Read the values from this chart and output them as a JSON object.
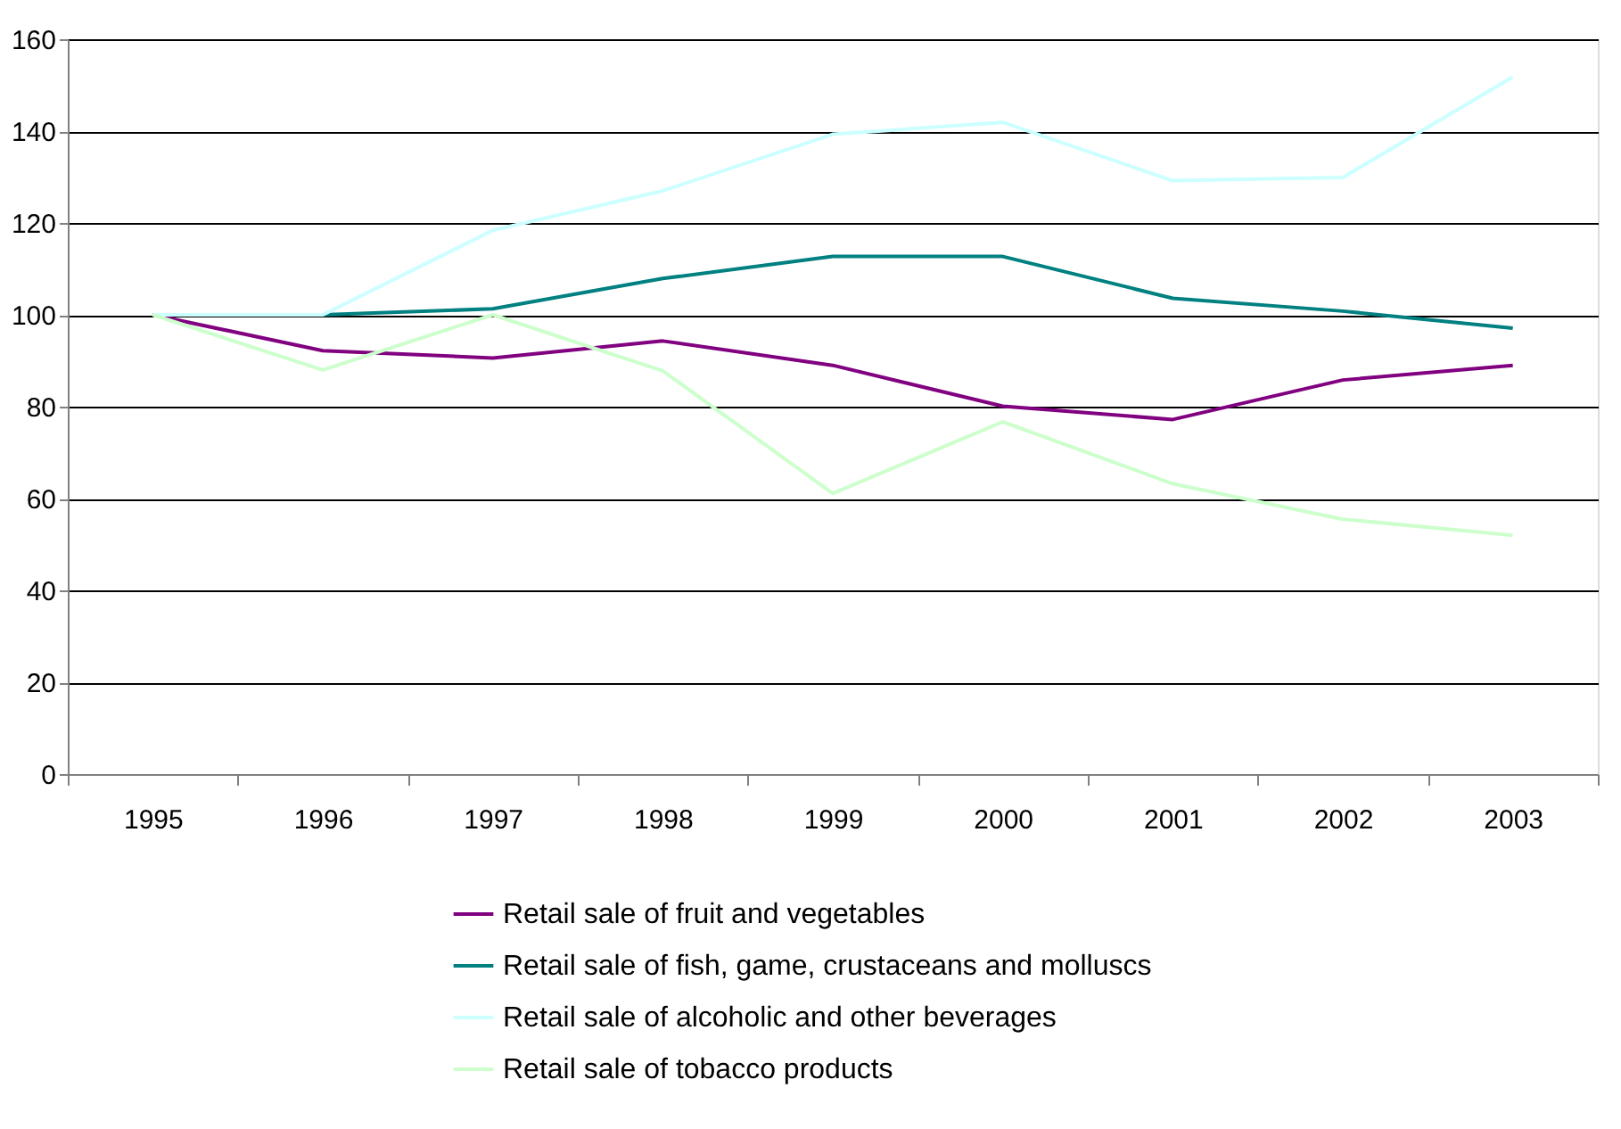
{
  "chart_data": {
    "type": "line",
    "categories": [
      "1995",
      "1996",
      "1997",
      "1998",
      "1999",
      "2000",
      "2001",
      "2002",
      "2003"
    ],
    "series": [
      {
        "name": "Retail sale of fruit and vegetables",
        "color": "#800080",
        "values": [
          100,
          92.2,
          90.6,
          94.3,
          89,
          80.1,
          77.2,
          85.8,
          89
        ]
      },
      {
        "name": "Retail sale of fish, game, crustaceans and molluscs",
        "color": "#008080",
        "values": [
          100,
          100,
          101.3,
          107.9,
          112.7,
          112.7,
          103.6,
          100.8,
          97.1
        ]
      },
      {
        "name": "Retail sale of alcoholic and other beverages",
        "color": "#ccffff",
        "values": [
          100,
          100,
          118.4,
          127,
          139.3,
          141.9,
          129.2,
          129.9,
          151.8
        ]
      },
      {
        "name": "Retail sale of tobacco products",
        "color": "#ccffcc",
        "values": [
          100,
          88,
          100,
          87.8,
          61.1,
          76.7,
          63.2,
          55.5,
          52
        ]
      }
    ],
    "ylim": [
      0,
      160
    ],
    "yticks": [
      0,
      20,
      40,
      60,
      80,
      100,
      120,
      140,
      160
    ],
    "grid": "y",
    "legend": "bottom",
    "marker": "none",
    "line_style": "solid"
  }
}
